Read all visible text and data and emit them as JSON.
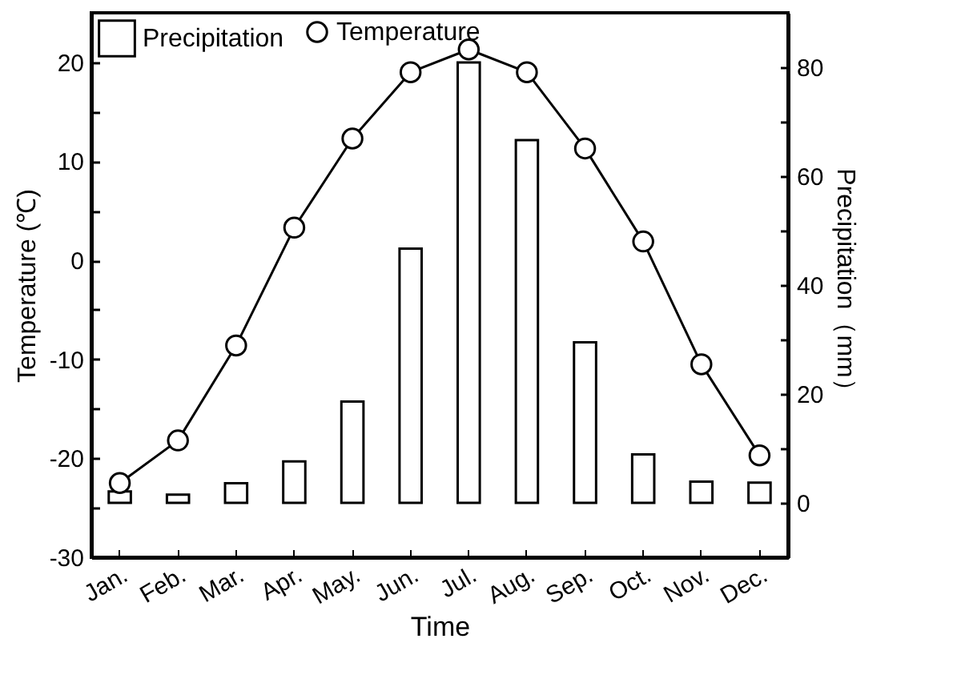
{
  "chart_data": {
    "type": "bar",
    "categories": [
      "Jan.",
      "Feb.",
      "Mar.",
      "Apr.",
      "May.",
      "Jun.",
      "Jul.",
      "Aug.",
      "Sep.",
      "Oct.",
      "Nov.",
      "Dec."
    ],
    "series": [
      {
        "name": "Temperature",
        "type": "line",
        "axis": "y",
        "color": "#000000",
        "values": [
          -22.5,
          -18.2,
          -8.6,
          3.3,
          12.3,
          19.0,
          21.3,
          19.0,
          11.3,
          1.9,
          -10.5,
          -19.7
        ]
      },
      {
        "name": "Precipitation",
        "type": "bar",
        "axis": "y2",
        "color": "#ffffff",
        "values": [
          2.1,
          1.5,
          3.6,
          7.6,
          18.6,
          46.7,
          80.9,
          66.6,
          29.5,
          8.9,
          3.9,
          3.7
        ]
      }
    ],
    "xlabel": "Time",
    "ylabel": "Temperature (℃)",
    "y2label": "Precipitation（mm）",
    "ylim": [
      -30,
      25
    ],
    "yticks": [
      -30,
      {
        "value": -25,
        "label": null
      },
      -20,
      {
        "value": -15,
        "label": null
      },
      -10,
      {
        "value": -5,
        "label": null
      },
      0,
      {
        "value": 5,
        "label": null
      },
      10,
      {
        "value": 15,
        "label": null
      },
      20
    ],
    "y2lim": [
      -10,
      90
    ],
    "y2ticks": [
      0,
      {
        "value": 10,
        "label": null
      },
      20,
      {
        "value": 30,
        "label": null
      },
      40,
      {
        "value": 50,
        "label": null
      },
      60,
      {
        "value": 70,
        "label": null
      },
      80
    ],
    "marker": "circle",
    "legend": "top left",
    "grid": false
  }
}
